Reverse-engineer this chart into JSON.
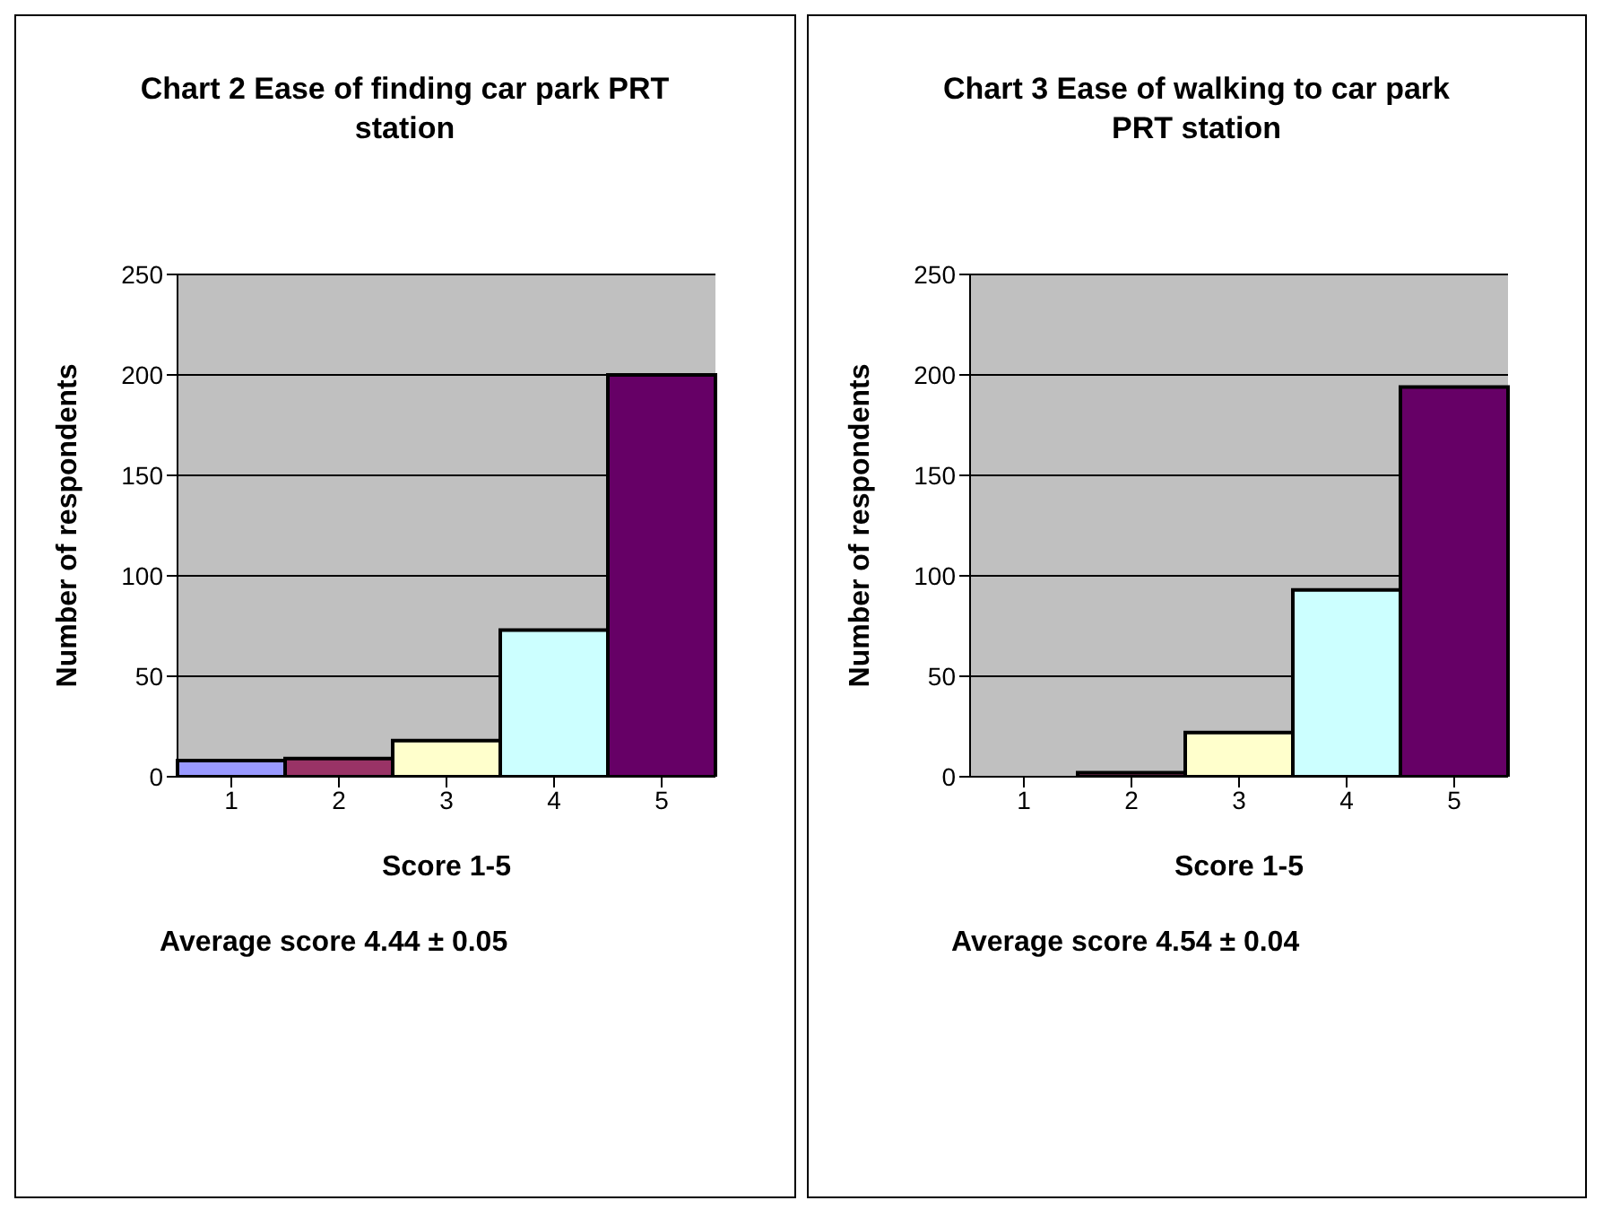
{
  "chart_data": [
    {
      "type": "bar",
      "title": "Chart 2   Ease of finding car park PRT station",
      "xlabel": "Score 1-5",
      "ylabel": "Number of respondents",
      "categories": [
        "1",
        "2",
        "3",
        "4",
        "5"
      ],
      "values": [
        8,
        9,
        18,
        73,
        200
      ],
      "colors": [
        "#9999ff",
        "#993366",
        "#ffffcc",
        "#ccffff",
        "#660066"
      ],
      "ylim": [
        0,
        250
      ],
      "yticks": [
        0,
        50,
        100,
        150,
        200,
        250
      ],
      "grid": "y",
      "annotations": [
        "Average score 4.44 ± 0.05"
      ]
    },
    {
      "type": "bar",
      "title": "Chart 3   Ease of walking to car park PRT station",
      "xlabel": "Score 1-5",
      "ylabel": "Number of respondents",
      "categories": [
        "1",
        "2",
        "3",
        "4",
        "5"
      ],
      "values": [
        0,
        2,
        22,
        93,
        194
      ],
      "colors": [
        "#9999ff",
        "#993366",
        "#ffffcc",
        "#ccffff",
        "#660066"
      ],
      "ylim": [
        0,
        250
      ],
      "yticks": [
        0,
        50,
        100,
        150,
        200,
        250
      ],
      "grid": "y",
      "annotations": [
        "Average score 4.54 ± 0.04"
      ]
    }
  ]
}
